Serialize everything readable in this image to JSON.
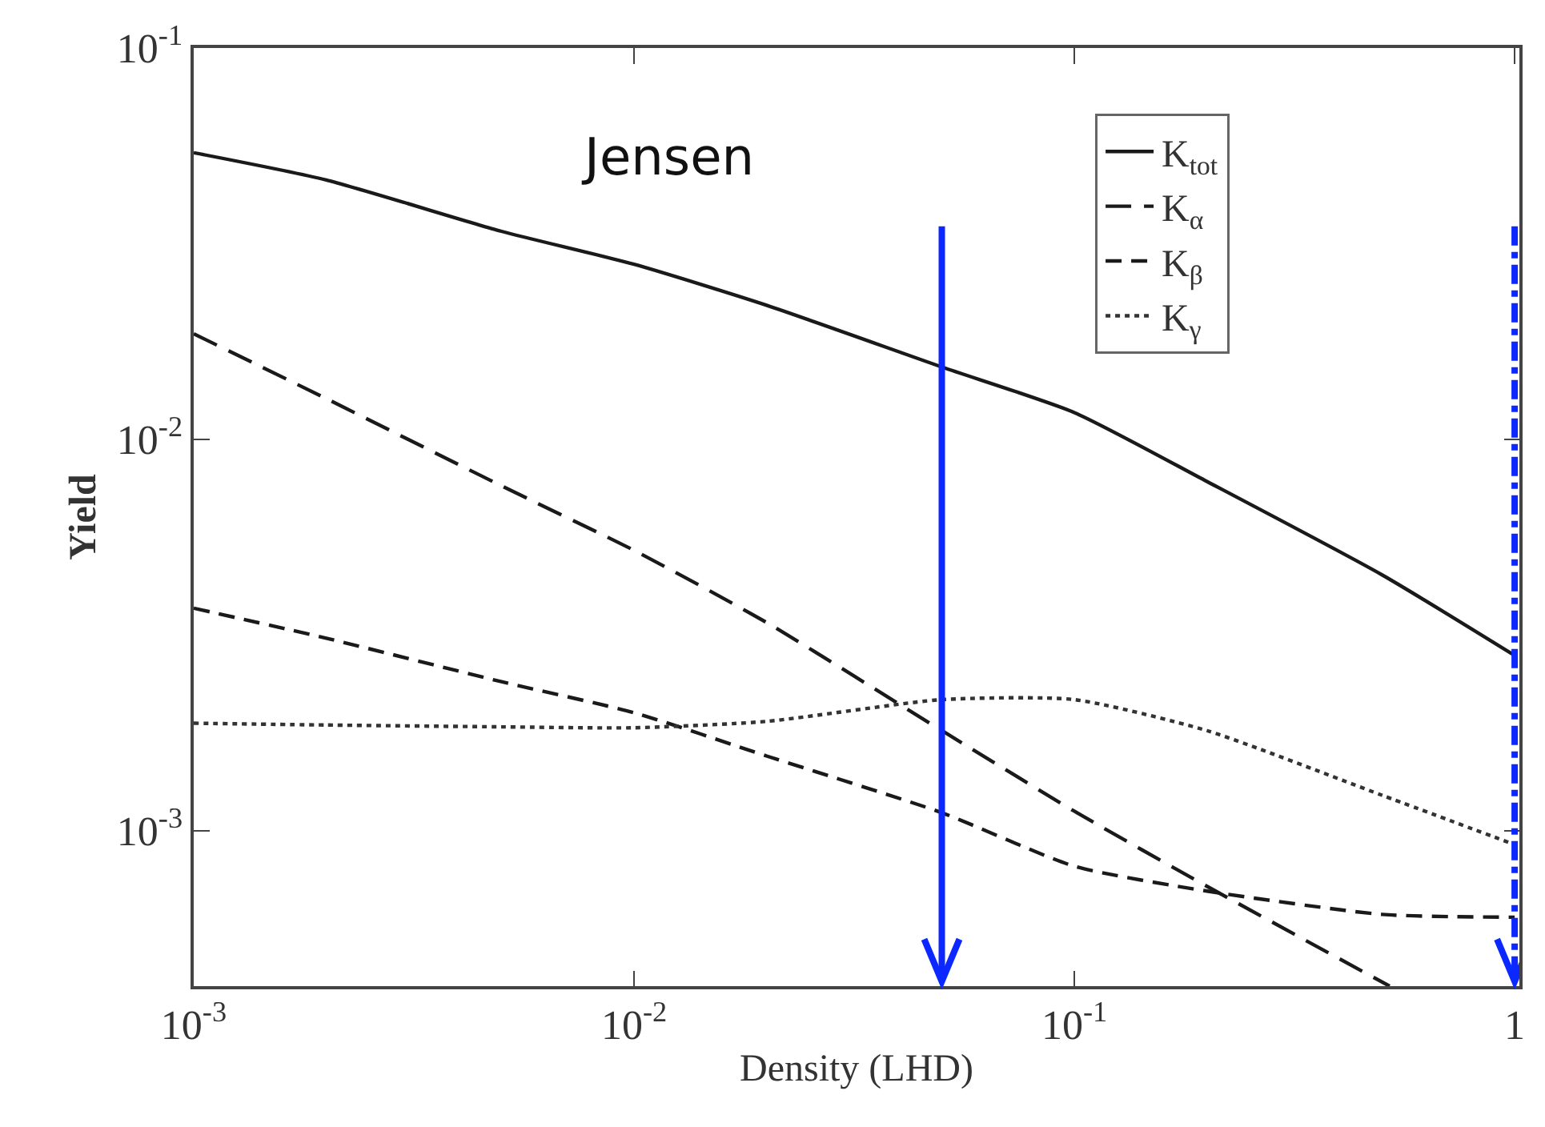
{
  "chart_data": {
    "type": "line",
    "xlabel": "Density (LHD)",
    "ylabel": "Yield",
    "x": [
      0.001,
      0.002,
      0.005,
      0.01,
      0.02,
      0.05,
      0.1,
      0.2,
      0.5,
      1
    ],
    "series": [
      {
        "name": "K$_{tot}$",
        "color": "#1a1a1a",
        "line_style": "solid",
        "values": [
          0.054,
          0.046,
          0.034,
          0.028,
          0.022,
          0.0153,
          0.0117,
          0.0078,
          0.0045,
          0.0028
        ]
      },
      {
        "name": "K$_{α}$",
        "color": "#1a1a1a",
        "line_style": "dashed",
        "x": [
          0.001,
          0.002,
          0.005,
          0.01,
          0.02,
          0.05,
          0.1,
          0.2,
          0.52
        ],
        "values": [
          0.0186,
          0.0127,
          0.0076,
          0.0052,
          0.0034,
          0.0018,
          0.00112,
          0.00072,
          0.0004
        ]
      },
      {
        "name": "K$_{β}$",
        "color": "#1a1a1a",
        "line_style": "dashed",
        "values": [
          0.0037,
          0.0031,
          0.0024,
          0.002,
          0.00155,
          0.00111,
          0.00081,
          0.0007,
          0.00061,
          0.0006
        ]
      },
      {
        "name": "K$_{γ}$",
        "color": "#333333",
        "line_style": "dotted",
        "values": [
          0.00188,
          0.00186,
          0.00184,
          0.00183,
          0.0019,
          0.00216,
          0.00216,
          0.0018,
          0.00123,
          0.00092
        ]
      }
    ],
    "log": "xy",
    "xlim": [
      0.001,
      1.025
    ],
    "ylim": [
      0.0004,
      0.1
    ],
    "xticks": [
      {
        "value": 0.001,
        "label": "10$^{-3}$"
      },
      {
        "value": 0.01,
        "label": "10$^{-2}$"
      },
      {
        "value": 0.1,
        "label": "10$^{-1}$"
      },
      1
    ],
    "yticks": [
      {
        "value": 0.001,
        "label": "10$^{-3}$"
      },
      {
        "value": 0.01,
        "label": "10$^{-2}$"
      },
      {
        "value": 0.1,
        "label": "10$^{-1}$"
      }
    ],
    "legend": "top right",
    "annotations": [
      "Jensen"
    ],
    "ref_lines": [
      {
        "axis": "x",
        "value": 0.05,
        "color": "#0a28ff",
        "line_style": "solid"
      },
      {
        "axis": "x",
        "value": 1,
        "color": "#0a28ff",
        "line_style": "dashdot"
      }
    ]
  }
}
